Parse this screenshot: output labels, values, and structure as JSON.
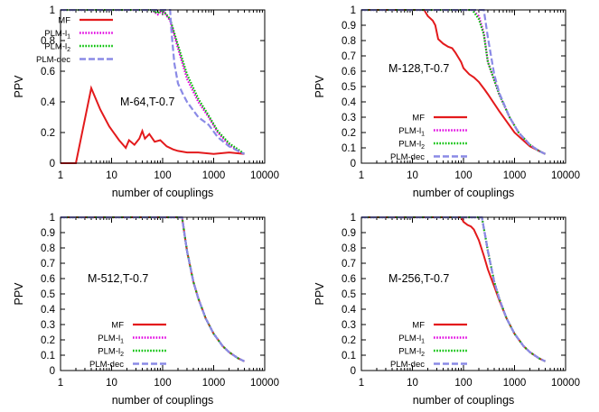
{
  "chart_data": [
    {
      "type": "line",
      "title": "M-64,T-0.7",
      "xlabel": "number of couplings",
      "ylabel": "PPV",
      "xscale": "log",
      "xlim": [
        1,
        10000
      ],
      "ylim": [
        0,
        1
      ],
      "xticks": [
        "1",
        "10",
        "100",
        "1000",
        "10000"
      ],
      "yticks": [
        "0",
        "0.2",
        "0.4",
        "0.6",
        "0.8",
        "1"
      ],
      "legend_position": "top-left",
      "series": [
        {
          "name": "MF",
          "label_parts": [
            "MF",
            "",
            ""
          ],
          "color": "#e31a1c",
          "style": "solid",
          "x": [
            1,
            2,
            4,
            6,
            9,
            14,
            19,
            22,
            28,
            35,
            40,
            45,
            55,
            70,
            90,
            120,
            160,
            200,
            300,
            500,
            1000,
            2000,
            4000
          ],
          "y": [
            0,
            0,
            0.49,
            0.35,
            0.24,
            0.15,
            0.1,
            0.15,
            0.12,
            0.16,
            0.21,
            0.16,
            0.19,
            0.14,
            0.15,
            0.11,
            0.09,
            0.08,
            0.07,
            0.07,
            0.06,
            0.07,
            0.06
          ]
        },
        {
          "name": "PLM-l1",
          "label_parts": [
            "PLM-l",
            "1",
            ""
          ],
          "color": "#e100e1",
          "style": "dotted",
          "x": [
            1,
            60,
            80,
            100,
            140,
            200,
            300,
            500,
            800,
            1200,
            2000,
            3000,
            4000
          ],
          "y": [
            1,
            1,
            0.97,
            1,
            0.93,
            0.75,
            0.55,
            0.4,
            0.3,
            0.2,
            0.12,
            0.08,
            0.06
          ]
        },
        {
          "name": "PLM-l2",
          "label_parts": [
            "PLM-l",
            "2",
            ""
          ],
          "color": "#00c000",
          "style": "dotted",
          "x": [
            1,
            60,
            80,
            100,
            140,
            200,
            300,
            500,
            800,
            1200,
            2000,
            3000,
            4000
          ],
          "y": [
            1,
            1,
            0.98,
            1,
            0.94,
            0.77,
            0.58,
            0.42,
            0.31,
            0.21,
            0.13,
            0.09,
            0.06
          ]
        },
        {
          "name": "PLM-dec",
          "label_parts": [
            "PLM-dec",
            "",
            ""
          ],
          "color": "#8a8ae6",
          "style": "dashed",
          "x": [
            1,
            140,
            150,
            170,
            200,
            250,
            300,
            500,
            800,
            1200,
            2000,
            3000,
            4000
          ],
          "y": [
            1,
            1,
            0.85,
            0.65,
            0.52,
            0.45,
            0.4,
            0.3,
            0.25,
            0.17,
            0.11,
            0.08,
            0.06
          ]
        }
      ]
    },
    {
      "type": "line",
      "title": "M-128,T-0.7",
      "xlabel": "number of couplings",
      "ylabel": "PPV",
      "xscale": "log",
      "xlim": [
        1,
        10000
      ],
      "ylim": [
        0,
        1
      ],
      "xticks": [
        "1",
        "10",
        "100",
        "1000",
        "10000"
      ],
      "yticks": [
        "0",
        "0.1",
        "0.2",
        "0.3",
        "0.4",
        "0.5",
        "0.6",
        "0.7",
        "0.8",
        "0.9",
        "1"
      ],
      "legend_position": "bottom-right",
      "series": [
        {
          "name": "MF",
          "label_parts": [
            "MF",
            "",
            ""
          ],
          "color": "#e31a1c",
          "style": "solid",
          "x": [
            1,
            17,
            20,
            25,
            28,
            32,
            40,
            50,
            60,
            70,
            90,
            100,
            130,
            160,
            200,
            260,
            300,
            500,
            1000,
            2000,
            4000
          ],
          "y": [
            1,
            1,
            0.96,
            0.93,
            0.9,
            0.81,
            0.78,
            0.76,
            0.75,
            0.72,
            0.66,
            0.62,
            0.58,
            0.56,
            0.53,
            0.48,
            0.45,
            0.34,
            0.2,
            0.11,
            0.06
          ]
        },
        {
          "name": "PLM-l1",
          "label_parts": [
            "PLM-l",
            "1",
            ""
          ],
          "color": "#e100e1",
          "style": "dotted",
          "x": [
            1,
            150,
            200,
            250,
            300,
            500,
            800,
            1200,
            2000,
            3000,
            4000
          ],
          "y": [
            1,
            1,
            0.96,
            0.85,
            0.66,
            0.45,
            0.3,
            0.2,
            0.12,
            0.08,
            0.06
          ]
        },
        {
          "name": "PLM-l2",
          "label_parts": [
            "PLM-l",
            "2",
            ""
          ],
          "color": "#00c000",
          "style": "dotted",
          "x": [
            1,
            150,
            200,
            250,
            300,
            500,
            800,
            1200,
            2000,
            3000,
            4000
          ],
          "y": [
            1,
            1,
            0.94,
            0.84,
            0.66,
            0.45,
            0.3,
            0.2,
            0.12,
            0.08,
            0.06
          ]
        },
        {
          "name": "PLM-dec",
          "label_parts": [
            "PLM-dec",
            "",
            ""
          ],
          "color": "#8a8ae6",
          "style": "dashed",
          "x": [
            1,
            250,
            300,
            400,
            500,
            800,
            1200,
            2000,
            3000,
            4000
          ],
          "y": [
            1,
            1,
            0.82,
            0.58,
            0.46,
            0.3,
            0.2,
            0.12,
            0.08,
            0.06
          ]
        }
      ]
    },
    {
      "type": "line",
      "title": "M-512,T-0.7",
      "xlabel": "number of couplings",
      "ylabel": "PPV",
      "xscale": "log",
      "xlim": [
        1,
        10000
      ],
      "ylim": [
        0,
        1
      ],
      "xticks": [
        "1",
        "10",
        "100",
        "1000",
        "10000"
      ],
      "yticks": [
        "0",
        "0.1",
        "0.2",
        "0.3",
        "0.4",
        "0.5",
        "0.6",
        "0.7",
        "0.8",
        "0.9",
        "1"
      ],
      "legend_position": "bottom-right",
      "series": [
        {
          "name": "MF",
          "label_parts": [
            "MF",
            "",
            ""
          ],
          "color": "#e31a1c",
          "style": "solid",
          "x": [
            1,
            240,
            300,
            400,
            500,
            700,
            1000,
            1500,
            2000,
            3000,
            4000
          ],
          "y": [
            1,
            1,
            0.78,
            0.58,
            0.47,
            0.34,
            0.24,
            0.16,
            0.12,
            0.08,
            0.06
          ]
        },
        {
          "name": "PLM-l1",
          "label_parts": [
            "PLM-l",
            "1",
            ""
          ],
          "color": "#e100e1",
          "style": "dotted",
          "x": [
            1,
            240,
            300,
            400,
            500,
            700,
            1000,
            1500,
            2000,
            3000,
            4000
          ],
          "y": [
            1,
            1,
            0.78,
            0.58,
            0.47,
            0.34,
            0.24,
            0.16,
            0.12,
            0.08,
            0.06
          ]
        },
        {
          "name": "PLM-l2",
          "label_parts": [
            "PLM-l",
            "2",
            ""
          ],
          "color": "#00c000",
          "style": "dotted",
          "x": [
            1,
            240,
            300,
            400,
            500,
            700,
            1000,
            1500,
            2000,
            3000,
            4000
          ],
          "y": [
            1,
            1,
            0.78,
            0.58,
            0.47,
            0.34,
            0.24,
            0.16,
            0.12,
            0.08,
            0.06
          ]
        },
        {
          "name": "PLM-dec",
          "label_parts": [
            "PLM-dec",
            "",
            ""
          ],
          "color": "#8a8ae6",
          "style": "dashed",
          "x": [
            1,
            240,
            300,
            400,
            500,
            700,
            1000,
            1500,
            2000,
            3000,
            4000
          ],
          "y": [
            1,
            1,
            0.78,
            0.58,
            0.47,
            0.34,
            0.24,
            0.16,
            0.12,
            0.08,
            0.06
          ]
        }
      ]
    },
    {
      "type": "line",
      "title": "M-256,T-0.7",
      "xlabel": "number of couplings",
      "ylabel": "PPV",
      "xscale": "log",
      "xlim": [
        1,
        10000
      ],
      "ylim": [
        0,
        1
      ],
      "xticks": [
        "1",
        "10",
        "100",
        "1000",
        "10000"
      ],
      "yticks": [
        "0",
        "0.1",
        "0.2",
        "0.3",
        "0.4",
        "0.5",
        "0.6",
        "0.7",
        "0.8",
        "0.9",
        "1"
      ],
      "legend_position": "bottom-right",
      "series": [
        {
          "name": "MF",
          "label_parts": [
            "MF",
            "",
            ""
          ],
          "color": "#e31a1c",
          "style": "solid",
          "x": [
            1,
            90,
            100,
            120,
            140,
            160,
            200,
            250,
            300,
            400,
            500,
            700,
            1000,
            1500,
            2000,
            3000,
            4000
          ],
          "y": [
            1,
            1,
            0.97,
            0.95,
            0.94,
            0.92,
            0.85,
            0.75,
            0.66,
            0.55,
            0.46,
            0.34,
            0.24,
            0.16,
            0.12,
            0.08,
            0.06
          ]
        },
        {
          "name": "PLM-l1",
          "label_parts": [
            "PLM-l",
            "1",
            ""
          ],
          "color": "#e100e1",
          "style": "dotted",
          "x": [
            1,
            230,
            300,
            400,
            500,
            700,
            1000,
            1500,
            2000,
            3000,
            4000
          ],
          "y": [
            1,
            1,
            0.78,
            0.58,
            0.47,
            0.34,
            0.24,
            0.16,
            0.12,
            0.08,
            0.06
          ]
        },
        {
          "name": "PLM-l2",
          "label_parts": [
            "PLM-l",
            "2",
            ""
          ],
          "color": "#00c000",
          "style": "dotted",
          "x": [
            1,
            230,
            300,
            400,
            500,
            700,
            1000,
            1500,
            2000,
            3000,
            4000
          ],
          "y": [
            1,
            1,
            0.78,
            0.58,
            0.47,
            0.34,
            0.24,
            0.16,
            0.12,
            0.08,
            0.06
          ]
        },
        {
          "name": "PLM-dec",
          "label_parts": [
            "PLM-dec",
            "",
            ""
          ],
          "color": "#8a8ae6",
          "style": "dashed",
          "x": [
            1,
            230,
            300,
            400,
            500,
            700,
            1000,
            1500,
            2000,
            3000,
            4000
          ],
          "y": [
            1,
            1,
            0.78,
            0.58,
            0.47,
            0.34,
            0.24,
            0.16,
            0.12,
            0.08,
            0.06
          ]
        }
      ]
    }
  ]
}
